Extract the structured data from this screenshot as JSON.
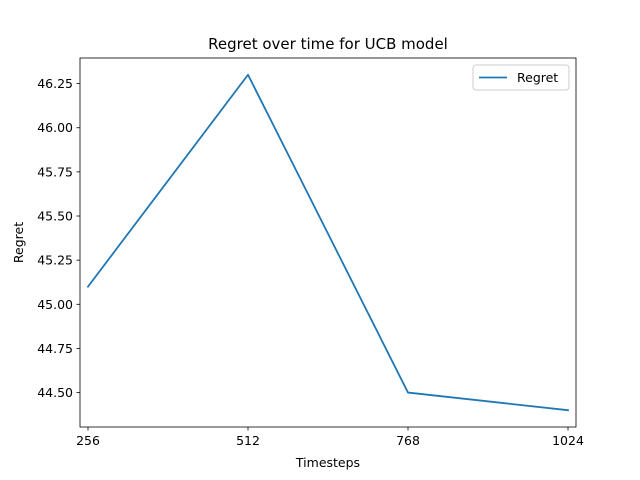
{
  "chart_data": {
    "type": "line",
    "title": "Regret over time for UCB model",
    "xlabel": "Timesteps",
    "ylabel": "Regret",
    "x": [
      256,
      512,
      768,
      1024
    ],
    "series": [
      {
        "name": "Regret",
        "values": [
          45.1,
          46.3,
          44.5,
          44.4
        ],
        "color": "#1f77b4"
      }
    ],
    "xticks": [
      "256",
      "512",
      "768",
      "1024"
    ],
    "yticks": [
      "44.50",
      "44.75",
      "45.00",
      "45.25",
      "45.50",
      "45.75",
      "46.00",
      "46.25"
    ],
    "xlim": [
      243.2,
      1036.8
    ],
    "ylim": [
      44.305,
      46.395
    ],
    "grid": false,
    "legend_position": "top-right"
  }
}
